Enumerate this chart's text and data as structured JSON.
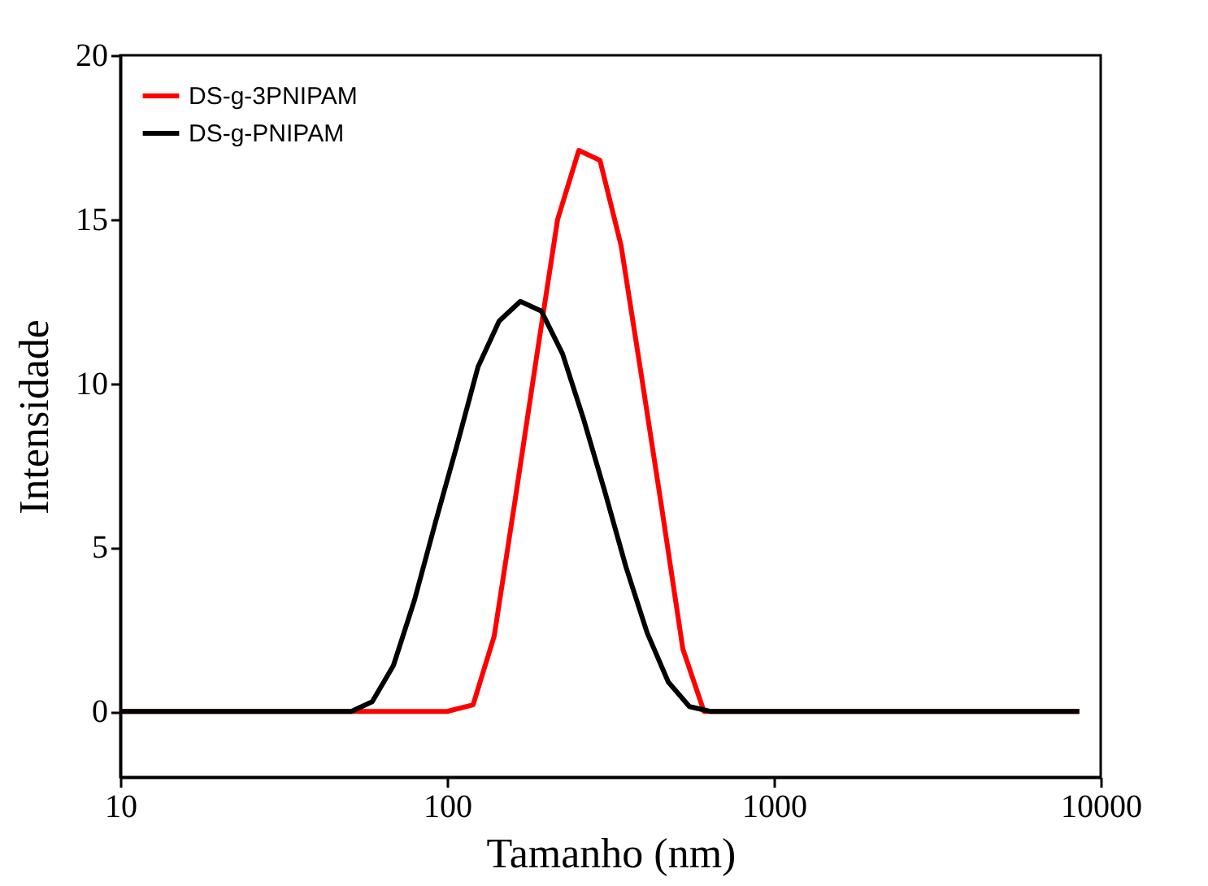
{
  "chart_data": {
    "type": "line",
    "xlabel": "Tamanho (nm)",
    "ylabel": "Intensidade",
    "log": "x",
    "xlim": [
      10,
      10000
    ],
    "xticks": [
      10,
      100,
      1000,
      10000
    ],
    "ylim": [
      -2,
      20
    ],
    "yticks": [
      0,
      5,
      10,
      15,
      20
    ],
    "grid": false,
    "legend": "top left",
    "line_style": "solid",
    "marker": "none",
    "series": [
      {
        "name": "DS-g-3PNIPAM",
        "color": "#ff0000",
        "x": [
          10,
          50,
          100,
          120.1,
          139.4,
          161.8,
          187.8,
          217.9,
          252.9,
          293.6,
          340.7,
          390.9,
          453.8,
          526.6,
          611,
          1000,
          8600
        ],
        "values": [
          0,
          0,
          0,
          0.2,
          2.3,
          6.5,
          10.8,
          15.0,
          17.1,
          16.8,
          14.2,
          10.4,
          6.2,
          1.9,
          0,
          0,
          0
        ]
      },
      {
        "name": "DS-g-PNIPAM",
        "color": "#000000",
        "x": [
          10,
          50.9,
          59.0,
          68.5,
          79.5,
          92.3,
          107.1,
          124.3,
          144.3,
          167.5,
          194.4,
          225.6,
          261.8,
          303.9,
          352.7,
          409.3,
          475.1,
          551.3,
          639.8,
          1000,
          8600
        ],
        "values": [
          0,
          0,
          0.3,
          1.4,
          3.4,
          5.8,
          8.1,
          10.5,
          11.9,
          12.5,
          12.2,
          10.9,
          8.9,
          6.7,
          4.4,
          2.4,
          0.9,
          0.15,
          0,
          0,
          0
        ]
      }
    ]
  }
}
